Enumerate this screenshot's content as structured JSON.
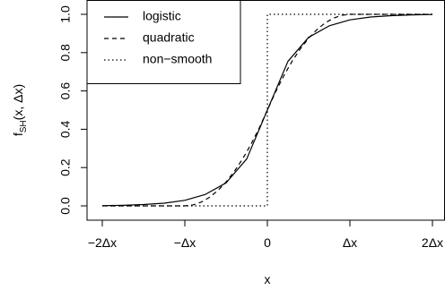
{
  "chart_data": {
    "type": "line",
    "xlabel": "x",
    "ylabel": "f",
    "ylabel_sub": "SH",
    "ylabel_args": "(x, Δx)",
    "xlim": [
      -2,
      2
    ],
    "ylim": [
      0,
      1
    ],
    "x_ticks": [
      {
        "value": -2,
        "label": "−2Δx"
      },
      {
        "value": -1,
        "label": "−Δx"
      },
      {
        "value": 0,
        "label": "0"
      },
      {
        "value": 1,
        "label": "Δx"
      },
      {
        "value": 2,
        "label": "2Δx"
      }
    ],
    "y_ticks": [
      {
        "value": 0,
        "label": "0.0"
      },
      {
        "value": 0.2,
        "label": "0.2"
      },
      {
        "value": 0.4,
        "label": "0.4"
      },
      {
        "value": 0.6,
        "label": "0.6"
      },
      {
        "value": 0.8,
        "label": "0.8"
      },
      {
        "value": 1,
        "label": "1.0"
      }
    ],
    "legend_position": "top-left",
    "grid": false,
    "series": [
      {
        "name": "logistic",
        "line_style": "solid",
        "color": "#000000",
        "x": [
          -2,
          -1.75,
          -1.5,
          -1.25,
          -1,
          -0.75,
          -0.5,
          -0.25,
          0,
          0.25,
          0.5,
          0.75,
          1,
          1.25,
          1.5,
          1.75,
          2
        ],
        "y": [
          0.001,
          0.003,
          0.007,
          0.014,
          0.029,
          0.06,
          0.12,
          0.245,
          0.5,
          0.755,
          0.88,
          0.94,
          0.971,
          0.986,
          0.993,
          0.997,
          0.999
        ]
      },
      {
        "name": "quadratic",
        "line_style": "dashed",
        "color": "#000000",
        "x": [
          -2,
          -1.5,
          -1.2,
          -1,
          -0.9,
          -0.8,
          -0.7,
          -0.6,
          -0.5,
          -0.4,
          -0.3,
          -0.2,
          -0.1,
          0,
          0.1,
          0.2,
          0.3,
          0.4,
          0.5,
          0.6,
          0.7,
          0.8,
          0.9,
          1,
          1.2,
          1.5,
          2
        ],
        "y": [
          0,
          0,
          0,
          0,
          0.005,
          0.02,
          0.045,
          0.08,
          0.125,
          0.18,
          0.245,
          0.32,
          0.405,
          0.5,
          0.595,
          0.68,
          0.755,
          0.82,
          0.875,
          0.92,
          0.955,
          0.98,
          0.995,
          1,
          1,
          1,
          1
        ]
      },
      {
        "name": "non−smooth",
        "line_style": "dotted",
        "color": "#000000",
        "x": [
          -2,
          0,
          0,
          2
        ],
        "y": [
          0,
          0,
          1,
          1
        ]
      }
    ]
  }
}
